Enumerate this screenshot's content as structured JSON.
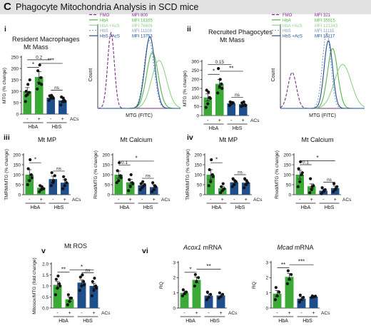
{
  "figure": {
    "letter": "C",
    "title": "Phagocyte Mitochondria Analysis in SCD mice"
  },
  "colors": {
    "HbA_minus": "#3aa935",
    "HbA_plus": "#3aa935",
    "HbS_minus": "#1f4e8c",
    "HbS_plus": "#1f4e8c",
    "FMO": "#7b2d8b",
    "HbA_hist": "#53b548",
    "HbA_AcS_hist": "#8fd28a",
    "HbS_hist": "#7c9cc8",
    "HbS_AcS_hist": "#1f4e8c"
  },
  "panel_labels": {
    "i": "i",
    "ii": "ii",
    "iii": "iii",
    "iv": "iv",
    "v": "v",
    "vi": "vi"
  },
  "chart_data": [
    {
      "id": "i-bar",
      "type": "bar",
      "section_title": "Resident Macrophages",
      "title": "Mt Mass",
      "ylabel": "MTG (% change)",
      "ylim": [
        0,
        250
      ],
      "yticks": [
        0,
        50,
        100,
        150,
        200,
        250
      ],
      "ytick_labels": [
        "0",
        "50",
        "100",
        "150",
        "200",
        "250"
      ],
      "categories": [
        "-",
        "+",
        "-",
        "+"
      ],
      "groups": [
        "HbA",
        "HbS"
      ],
      "treatment_label": "ACs",
      "values": [
        100,
        163,
        72,
        60
      ],
      "errors": [
        16,
        23,
        7,
        10
      ],
      "points": [
        [
          55,
          85,
          95,
          100,
          130,
          150,
          80
        ],
        [
          110,
          135,
          160,
          190,
          215,
          130
        ],
        [
          60,
          70,
          75,
          80,
          82,
          70
        ],
        [
          40,
          55,
          60,
          75,
          70,
          55
        ]
      ],
      "significance": [
        {
          "from": 0,
          "to": 1,
          "label": "*",
          "y": 205
        },
        {
          "from": 0,
          "to": 2,
          "label": "0.2",
          "y": 238
        },
        {
          "from": 1,
          "to": 3,
          "label": "***",
          "y": 222
        },
        {
          "from": 2,
          "to": 3,
          "label": "ns",
          "y": 105
        }
      ]
    },
    {
      "id": "i-hist",
      "type": "line",
      "title": "",
      "xlabel": "MTG (FITC)",
      "ylabel": "Count",
      "legend_position": "top-right",
      "series": [
        {
          "name": "FMO",
          "mfi": "MFI 800",
          "color": "#7b2d8b",
          "dash": "4,2",
          "peak": 0.16,
          "width": 0.04,
          "height": 0.95
        },
        {
          "name": "HbA",
          "mfi": "MFI 18105",
          "color": "#53b548",
          "dash": "",
          "peak": 0.66,
          "width": 0.07,
          "height": 0.7
        },
        {
          "name": "HbA +AcS",
          "mfi": "MFI 76606",
          "color": "#8fd28a",
          "dash": "",
          "peak": 0.74,
          "width": 0.09,
          "height": 0.6
        },
        {
          "name": "HbS",
          "mfi": "MFI 11108",
          "color": "#7c9cc8",
          "dash": "2,2",
          "peak": 0.62,
          "width": 0.06,
          "height": 0.85
        },
        {
          "name": "HbS +AcS",
          "mfi": "MFI 13753",
          "color": "#1f4e8c",
          "dash": "",
          "peak": 0.63,
          "width": 0.06,
          "height": 0.9
        }
      ]
    },
    {
      "id": "ii-bar",
      "type": "bar",
      "section_title": "Recruited Phagocytes",
      "title": "Mt Mass",
      "ylabel": "MTG (% change)",
      "ylim": [
        0,
        300
      ],
      "yticks": [
        0,
        50,
        100,
        150,
        200,
        250,
        300
      ],
      "ytick_labels": [
        "0",
        "50",
        "100",
        "150",
        "200",
        "250",
        "300"
      ],
      "categories": [
        "-",
        "+",
        "-",
        "+"
      ],
      "groups": [
        "HbA",
        "HbS"
      ],
      "treatment_label": "ACs",
      "values": [
        100,
        175,
        68,
        63
      ],
      "errors": [
        20,
        25,
        6,
        8
      ],
      "points": [
        [
          45,
          65,
          100,
          140,
          130,
          95
        ],
        [
          125,
          160,
          175,
          260,
          200,
          150
        ],
        [
          55,
          65,
          70,
          75,
          72
        ],
        [
          50,
          55,
          60,
          70,
          75,
          55
        ]
      ],
      "significance": [
        {
          "from": 0,
          "to": 1,
          "label": "*",
          "y": 228
        },
        {
          "from": 0,
          "to": 2,
          "label": "0.15",
          "y": 282
        },
        {
          "from": 1,
          "to": 3,
          "label": "**",
          "y": 245
        },
        {
          "from": 2,
          "to": 3,
          "label": "ns",
          "y": 100
        }
      ]
    },
    {
      "id": "ii-hist",
      "type": "line",
      "title": "",
      "xlabel": "MTG (FITC)",
      "ylabel": "Count",
      "legend_position": "top-right",
      "series": [
        {
          "name": "FMO",
          "mfi": "MFI 321",
          "color": "#7b2d8b",
          "dash": "4,2",
          "peak": 0.14,
          "width": 0.05,
          "height": 0.45
        },
        {
          "name": "HbA",
          "mfi": "MFI 35015",
          "color": "#53b548",
          "dash": "",
          "peak": 0.62,
          "width": 0.06,
          "height": 0.75
        },
        {
          "name": "HbA +AcS",
          "mfi": "MFI 121343",
          "color": "#8fd28a",
          "dash": "",
          "peak": 0.74,
          "width": 0.1,
          "height": 0.55
        },
        {
          "name": "HbS",
          "mfi": "MFI 11115",
          "color": "#7c9cc8",
          "dash": "2,2",
          "peak": 0.55,
          "width": 0.05,
          "height": 0.95
        },
        {
          "name": "HbS +AcS",
          "mfi": "MFI 16117",
          "color": "#1f4e8c",
          "dash": "",
          "peak": 0.57,
          "width": 0.05,
          "height": 0.85
        }
      ]
    },
    {
      "id": "iii-mp",
      "type": "bar",
      "title": "Mt MP",
      "ylabel": "TMRM/MTG (% change)",
      "ylim": [
        0,
        200
      ],
      "yticks": [
        0,
        50,
        100,
        150,
        200
      ],
      "ytick_labels": [
        "0",
        "50",
        "100",
        "150",
        "200"
      ],
      "categories": [
        "-",
        "+",
        "-",
        "+"
      ],
      "groups": [
        "HbA",
        "HbS"
      ],
      "treatment_label": "ACs",
      "values": [
        100,
        35,
        78,
        60
      ],
      "errors": [
        25,
        8,
        15,
        15
      ],
      "points": [
        [
          50,
          70,
          100,
          130,
          175,
          85
        ],
        [
          15,
          25,
          30,
          45,
          40,
          30
        ],
        [
          45,
          60,
          95,
          110,
          70
        ],
        [
          30,
          45,
          60,
          90,
          75
        ]
      ],
      "significance": [
        {
          "from": 0,
          "to": 1,
          "label": "*",
          "y": 160
        },
        {
          "from": 2,
          "to": 3,
          "label": "ns",
          "y": 118
        }
      ]
    },
    {
      "id": "iii-ca",
      "type": "bar",
      "title": "Mt Calcium",
      "ylabel": "Rhod/MTG (% change)",
      "ylim": [
        0,
        200
      ],
      "yticks": [
        0,
        50,
        100,
        150,
        200
      ],
      "ytick_labels": [
        "0",
        "50",
        "100",
        "150",
        "200"
      ],
      "categories": [
        "-",
        "+",
        "-",
        "+"
      ],
      "groups": [
        "HbA",
        "HbS"
      ],
      "treatment_label": "ACs",
      "values": [
        100,
        62,
        47,
        38
      ],
      "errors": [
        18,
        14,
        8,
        12
      ],
      "points": [
        [
          60,
          70,
          95,
          120,
          160,
          85
        ],
        [
          20,
          40,
          60,
          75,
          100,
          55
        ],
        [
          25,
          35,
          45,
          55,
          65,
          50
        ],
        [
          15,
          25,
          40,
          60,
          45
        ]
      ],
      "significance": [
        {
          "from": 0,
          "to": 1,
          "label": "0.1",
          "y": 148
        },
        {
          "from": 0,
          "to": 3,
          "label": "*",
          "y": 168
        },
        {
          "from": 2,
          "to": 3,
          "label": "ns",
          "y": 82
        }
      ]
    },
    {
      "id": "iv-mp",
      "type": "bar",
      "title": "Mt MP",
      "ylabel": "TMRM/MTG (% change)",
      "ylim": [
        0,
        200
      ],
      "yticks": [
        0,
        50,
        100,
        150,
        200
      ],
      "ytick_labels": [
        "0",
        "50",
        "100",
        "150",
        "200"
      ],
      "categories": [
        "-",
        "+",
        "-",
        "+"
      ],
      "groups": [
        "HbA",
        "HbS"
      ],
      "treatment_label": "ACs",
      "values": [
        100,
        32,
        62,
        60
      ],
      "errors": [
        25,
        10,
        10,
        12
      ],
      "points": [
        [
          45,
          65,
          100,
          125,
          175,
          90
        ],
        [
          10,
          20,
          30,
          40,
          55
        ],
        [
          40,
          50,
          65,
          80,
          70
        ],
        [
          35,
          50,
          60,
          80,
          70
        ]
      ],
      "significance": [
        {
          "from": 0,
          "to": 1,
          "label": "*",
          "y": 160
        },
        {
          "from": 2,
          "to": 3,
          "label": "ns",
          "y": 100
        }
      ]
    },
    {
      "id": "iv-ca",
      "type": "bar",
      "title": "Mt Calcium",
      "ylabel": "Rhod/MTG (% change)",
      "ylim": [
        0,
        200
      ],
      "yticks": [
        0,
        50,
        100,
        150,
        200
      ],
      "ytick_labels": [
        "0",
        "50",
        "100",
        "150",
        "200"
      ],
      "categories": [
        "-",
        "+",
        "-",
        "+"
      ],
      "groups": [
        "HbA",
        "HbS"
      ],
      "treatment_label": "ACs",
      "values": [
        100,
        42,
        20,
        33
      ],
      "errors": [
        22,
        12,
        8,
        10
      ],
      "points": [
        [
          40,
          65,
          100,
          130,
          165,
          110
        ],
        [
          10,
          25,
          45,
          80,
          40
        ],
        [
          5,
          15,
          25,
          35,
          20
        ],
        [
          15,
          25,
          40,
          55,
          30
        ]
      ],
      "significance": [
        {
          "from": 0,
          "to": 1,
          "label": "0.1",
          "y": 150
        },
        {
          "from": 0,
          "to": 3,
          "label": "*",
          "y": 170
        },
        {
          "from": 2,
          "to": 3,
          "label": "ns",
          "y": 62
        }
      ]
    },
    {
      "id": "v-ros",
      "type": "bar",
      "section_title": "Mt ROS",
      "title": "Mt ROS",
      "ylabel": "Mitosox/MTG (fold change)",
      "ylim": [
        0,
        2.0
      ],
      "yticks": [
        0,
        0.5,
        1.0,
        1.5,
        2.0
      ],
      "ytick_labels": [
        "0.0",
        "0.5",
        "1.0",
        "1.5",
        "2.0"
      ],
      "categories": [
        "-",
        "+",
        "-",
        "+"
      ],
      "groups": [
        "HbA",
        "HbS"
      ],
      "treatment_label": "ACs",
      "values": [
        1.05,
        0.4,
        1.15,
        1.0
      ],
      "errors": [
        0.15,
        0.1,
        0.12,
        0.12
      ],
      "points": [
        [
          0.6,
          0.9,
          1.1,
          1.3,
          1.45,
          1.0
        ],
        [
          0.15,
          0.3,
          0.45,
          0.6,
          0.45
        ],
        [
          0.8,
          1.0,
          1.2,
          1.4,
          1.5,
          1.05
        ],
        [
          0.55,
          0.8,
          1.0,
          1.2,
          1.35,
          0.9
        ]
      ],
      "significance": [
        {
          "from": 0,
          "to": 1,
          "label": "**",
          "y": 1.62
        },
        {
          "from": 1,
          "to": 3,
          "label": "*",
          "y": 1.72
        },
        {
          "from": 2,
          "to": 3,
          "label": "ns",
          "y": 1.6
        }
      ]
    },
    {
      "id": "vi-acox1",
      "type": "bar",
      "title_italic": "Acox1",
      "title": " mRNA",
      "ylabel": "RQ",
      "ylim": [
        0,
        3
      ],
      "yticks": [
        0,
        1,
        2,
        3
      ],
      "ytick_labels": [
        "0",
        "1",
        "2",
        "3"
      ],
      "categories": [
        "-",
        "+",
        "-",
        "+"
      ],
      "groups": [
        "HbA",
        "HbS"
      ],
      "treatment_label": "ACs",
      "values": [
        1.0,
        1.85,
        0.82,
        0.83
      ],
      "errors": [
        0.12,
        0.2,
        0.12,
        0.1
      ],
      "points": [
        [
          0.8,
          0.95,
          1.05,
          1.2
        ],
        [
          1.45,
          1.75,
          2.0,
          2.2
        ],
        [
          0.55,
          0.7,
          0.9,
          1.05
        ],
        [
          0.65,
          0.75,
          0.9,
          1.0
        ]
      ],
      "significance": [
        {
          "from": 0,
          "to": 1,
          "label": "*",
          "y": 2.35
        },
        {
          "from": 1,
          "to": 3,
          "label": "**",
          "y": 2.55
        }
      ]
    },
    {
      "id": "vi-mcad",
      "type": "bar",
      "title_italic": "Mcad",
      "title": " mRNA",
      "ylabel": "RQ",
      "ylim": [
        0,
        3
      ],
      "yticks": [
        0,
        1,
        2,
        3
      ],
      "ytick_labels": [
        "0",
        "1",
        "2",
        "3"
      ],
      "categories": [
        "-",
        "+",
        "-",
        "+"
      ],
      "groups": [
        "HbA",
        "HbS"
      ],
      "treatment_label": "ACs",
      "values": [
        0.95,
        2.05,
        0.62,
        0.75
      ],
      "errors": [
        0.2,
        0.22,
        0.12,
        0.04
      ],
      "points": [
        [
          0.55,
          0.8,
          1.05,
          1.35
        ],
        [
          1.6,
          1.9,
          2.2,
          2.45
        ],
        [
          0.4,
          0.55,
          0.7,
          0.85
        ],
        [
          0.7,
          0.74,
          0.78,
          0.8
        ]
      ],
      "significance": [
        {
          "from": 0,
          "to": 1,
          "label": "**",
          "y": 2.65
        },
        {
          "from": 1,
          "to": 3,
          "label": "***",
          "y": 2.85
        }
      ]
    }
  ]
}
